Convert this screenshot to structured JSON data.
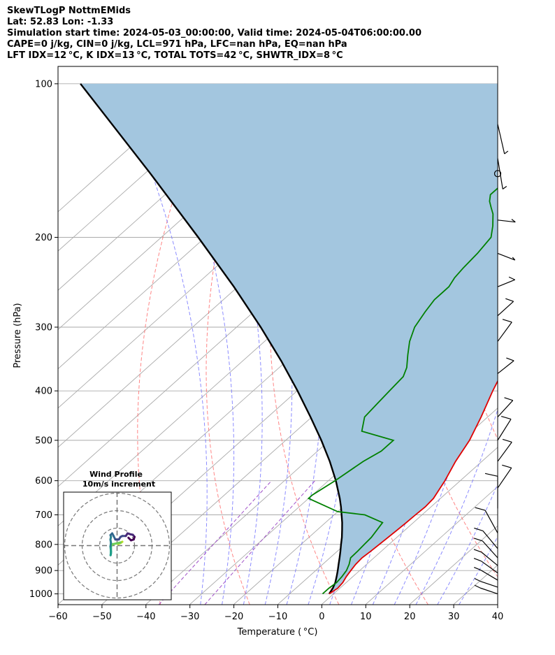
{
  "header": {
    "lines": [
      "SkewTLogP NottmEMids",
      "Lat: 52.83   Lon: -1.33",
      "Simulation start time: 2024-05-03_00:00:00, Valid time: 2024-05-04T06:00:00.00",
      "CAPE=0 j/kg, CIN=0 j/kg, LCL=971 hPa, LFC=nan hPa, EQ=nan hPa",
      "LFT IDX=12 °C, K IDX=13 °C, TOTAL TOTS=42 °C, SHWTR_IDX=8 °C"
    ]
  },
  "chart_data": {
    "type": "line",
    "subtype": "skew-t log-p",
    "xlabel": "Temperature ( °C)",
    "ylabel": "Pressure (hPa)",
    "xlim": [
      -60,
      40
    ],
    "ylim": [
      1050,
      100
    ],
    "y_scale": "log",
    "x_ticks": [
      -60,
      -50,
      -40,
      -30,
      -20,
      -10,
      0,
      10,
      20,
      30,
      40
    ],
    "x_tick_labels": [
      "−60",
      "−50",
      "−40",
      "−30",
      "−20",
      "−10",
      "0",
      "10",
      "20",
      "30",
      "40"
    ],
    "y_ticks": [
      1000,
      900,
      800,
      700,
      600,
      500,
      400,
      300,
      200,
      100
    ],
    "grid": true,
    "colors": {
      "temperature": "#e00000",
      "dewpoint": "#008000",
      "parcel": "#000000",
      "cin_fill": "#a3c6df",
      "dry_adiabat": "#ff6666",
      "moist_adiabat": "#6f6fff",
      "mixing_ratio": "#a050c8",
      "isotherm": "#aaaaaa"
    },
    "series": [
      {
        "key": "temperature",
        "points": [
          [
            9,
            1000
          ],
          [
            9.5,
            975
          ],
          [
            9.2,
            950
          ],
          [
            8.5,
            925
          ],
          [
            8,
            900
          ],
          [
            7.5,
            875
          ],
          [
            7.3,
            850
          ],
          [
            7.6,
            825
          ],
          [
            7.8,
            800
          ],
          [
            8,
            775
          ],
          [
            8.2,
            750
          ],
          [
            8.4,
            725
          ],
          [
            8.5,
            700
          ],
          [
            8.7,
            675
          ],
          [
            8.4,
            650
          ],
          [
            6.5,
            600
          ],
          [
            4,
            550
          ],
          [
            1.8,
            500
          ],
          [
            -1.5,
            450
          ],
          [
            -5.5,
            400
          ],
          [
            -7.5,
            375
          ],
          [
            -8.8,
            350
          ],
          [
            -11,
            325
          ],
          [
            -13.3,
            300
          ],
          [
            -14.5,
            287
          ],
          [
            -15.5,
            275
          ],
          [
            -16.5,
            265
          ],
          [
            -16.5,
            260
          ],
          [
            -16.5,
            255
          ],
          [
            -16,
            250
          ],
          [
            -16,
            240
          ],
          [
            -16.5,
            230
          ],
          [
            -17,
            220
          ],
          [
            -18,
            210
          ],
          [
            -19,
            200
          ],
          [
            -21,
            190
          ],
          [
            -22.5,
            180
          ],
          [
            -24,
            170
          ],
          [
            -25.5,
            160
          ],
          [
            -27,
            150
          ],
          [
            -29,
            140
          ],
          [
            -31.5,
            130
          ],
          [
            -34,
            120
          ],
          [
            -37,
            110
          ],
          [
            -39.5,
            100
          ]
        ]
      },
      {
        "key": "dewpoint",
        "points": [
          [
            7.5,
            1000
          ],
          [
            7.5,
            975
          ],
          [
            7.8,
            950
          ],
          [
            7.5,
            925
          ],
          [
            7,
            900
          ],
          [
            6,
            875
          ],
          [
            4.7,
            850
          ],
          [
            4.6,
            825
          ],
          [
            4.4,
            800
          ],
          [
            4.2,
            775
          ],
          [
            3,
            725
          ],
          [
            -3,
            700
          ],
          [
            -10,
            690
          ],
          [
            -20,
            650
          ],
          [
            -20,
            640
          ],
          [
            -18.5,
            600
          ],
          [
            -17,
            550
          ],
          [
            -15.5,
            525
          ],
          [
            -15.5,
            500
          ],
          [
            -25,
            480
          ],
          [
            -28,
            450
          ],
          [
            -28.5,
            425
          ],
          [
            -29,
            400
          ],
          [
            -29.5,
            375
          ],
          [
            -31,
            360
          ],
          [
            -34,
            340
          ],
          [
            -37,
            320
          ],
          [
            -39.5,
            300
          ],
          [
            -41,
            280
          ],
          [
            -42,
            265
          ],
          [
            -42,
            250
          ],
          [
            -43,
            240
          ],
          [
            -43.5,
            230
          ],
          [
            -44,
            215
          ],
          [
            -45,
            200
          ],
          [
            -47.5,
            190
          ],
          [
            -50.5,
            180
          ],
          [
            -52.5,
            175
          ],
          [
            -54.5,
            170
          ],
          [
            -56,
            165
          ],
          [
            -56,
            160
          ],
          [
            -55,
            150
          ],
          [
            -54,
            140
          ],
          [
            -53,
            130
          ],
          [
            -52.5,
            120
          ],
          [
            -52,
            110
          ],
          [
            -51.5,
            100
          ]
        ]
      },
      {
        "key": "parcel",
        "points": [
          [
            9,
            1000
          ],
          [
            8.4,
            975
          ],
          [
            7.5,
            950
          ],
          [
            6.3,
            925
          ],
          [
            5,
            900
          ],
          [
            3.6,
            875
          ],
          [
            2.2,
            850
          ],
          [
            0.7,
            825
          ],
          [
            -0.9,
            800
          ],
          [
            -2.5,
            775
          ],
          [
            -4.3,
            750
          ],
          [
            -6.2,
            725
          ],
          [
            -8.3,
            700
          ],
          [
            -10.5,
            675
          ],
          [
            -12.9,
            650
          ],
          [
            -18.3,
            600
          ],
          [
            -24.6,
            550
          ],
          [
            -31.9,
            500
          ],
          [
            -40.3,
            450
          ],
          [
            -49.9,
            400
          ],
          [
            -61.1,
            350
          ],
          [
            -74.5,
            300
          ],
          [
            -90.9,
            250
          ],
          [
            -111.6,
            200
          ],
          [
            -138.7,
            150
          ],
          [
            -177.5,
            100
          ]
        ]
      }
    ],
    "hodograph": {
      "title": "Wind Profile",
      "subtitle": "10m/s increment",
      "rings_ms": [
        10,
        20,
        30
      ],
      "points_uv": [
        [
          0.5,
          0.8
        ],
        [
          2,
          1.5
        ],
        [
          3,
          2.2
        ],
        [
          2,
          1.8
        ],
        [
          -1.5,
          1
        ],
        [
          -2.5,
          0.8
        ],
        [
          -3,
          0.3
        ],
        [
          -3.5,
          -0.5
        ],
        [
          -3.5,
          -1.5
        ],
        [
          -3.5,
          -2.5
        ],
        [
          -3.5,
          -3.5
        ],
        [
          -3.5,
          -4.5
        ],
        [
          -3.7,
          -5.5
        ],
        [
          -3.5,
          -3.5
        ],
        [
          -3.8,
          -0.5
        ],
        [
          -3.5,
          1.5
        ],
        [
          -3.8,
          3.5
        ],
        [
          -3.5,
          5
        ],
        [
          -3.8,
          6
        ],
        [
          -2.8,
          7
        ],
        [
          -2,
          5.5
        ],
        [
          -1,
          3.5
        ],
        [
          1,
          3.5
        ],
        [
          2,
          5
        ],
        [
          3,
          5.5
        ],
        [
          5,
          5.5
        ],
        [
          6,
          7
        ],
        [
          7.5,
          6.5
        ],
        [
          9,
          6.2
        ],
        [
          10,
          5
        ],
        [
          9.5,
          3.5
        ],
        [
          8,
          3
        ],
        [
          6.5,
          4.5
        ]
      ]
    },
    "wind_barbs": [
      {
        "p": 1000,
        "u": -4.3,
        "v": 0.8
      },
      {
        "p": 970,
        "u": -5.4,
        "v": 1.0
      },
      {
        "p": 940,
        "u": -6.1,
        "v": 2.0
      },
      {
        "p": 910,
        "u": -6.3,
        "v": 2.5
      },
      {
        "p": 880,
        "u": -6.6,
        "v": 3.0
      },
      {
        "p": 850,
        "u": -5.7,
        "v": 3.5
      },
      {
        "p": 815,
        "u": -3.8,
        "v": 2.5
      },
      {
        "p": 760,
        "u": -2.0,
        "v": 2.0
      },
      {
        "p": 680,
        "u": 0.0,
        "v": 2.5
      },
      {
        "p": 620,
        "u": 2.5,
        "v": 2.0
      },
      {
        "p": 550,
        "u": 4.0,
        "v": 3.0
      },
      {
        "p": 500,
        "u": 4.0,
        "v": 3.5
      },
      {
        "p": 450,
        "u": 5.0,
        "v": 3.0
      },
      {
        "p": 370,
        "u": 8.0,
        "v": 3.5
      },
      {
        "p": 320,
        "u": 8.0,
        "v": 6.0
      },
      {
        "p": 285,
        "u": 10.0,
        "v": 5.0
      },
      {
        "p": 250,
        "u": 9.0,
        "v": 2.0
      },
      {
        "p": 215,
        "u": 7.0,
        "v": -1.5
      },
      {
        "p": 185,
        "u": 8.0,
        "v": -0.5
      },
      {
        "p": 150,
        "u": 0.0,
        "v": 0.0
      },
      {
        "p": 140,
        "u": 1.5,
        "v": -5.0
      },
      {
        "p": 120,
        "u": 2.5,
        "v": -6.0
      }
    ]
  }
}
